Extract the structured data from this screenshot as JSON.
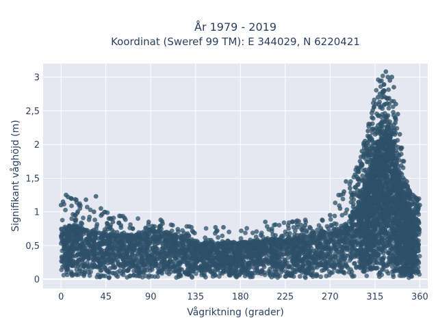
{
  "chart_data": {
    "type": "scatter",
    "title": "År 1979 - 2019",
    "subtitle": "Koordinat (Sweref 99 TM): E 344029, N 6220421",
    "xlabel": "Vågriktning (grader)",
    "ylabel": "Signifikant våghöjd (m)",
    "xlim": [
      -18,
      368
    ],
    "ylim": [
      -0.14,
      3.2
    ],
    "x_ticks": [
      0,
      45,
      90,
      135,
      180,
      225,
      270,
      315,
      360
    ],
    "x_tick_labels": [
      "0",
      "45",
      "90",
      "135",
      "180",
      "225",
      "270",
      "315",
      "360"
    ],
    "y_ticks": [
      0,
      0.5,
      1,
      1.5,
      2,
      2.5,
      3
    ],
    "y_tick_labels": [
      "0",
      "0,5",
      "1",
      "1,5",
      "2",
      "2,5",
      "3"
    ],
    "grid": true,
    "legend": false,
    "marker_color": "#2e5169",
    "background_color": "#e5e8f0",
    "envelope": {
      "direction": [
        0,
        15,
        30,
        45,
        60,
        75,
        90,
        105,
        120,
        135,
        150,
        165,
        180,
        195,
        210,
        225,
        240,
        255,
        270,
        280,
        290,
        300,
        305,
        310,
        315,
        320,
        325,
        330,
        335,
        340,
        345,
        350,
        355,
        360
      ],
      "dense_max": [
        0.75,
        0.8,
        0.72,
        0.68,
        0.65,
        0.65,
        0.72,
        0.7,
        0.62,
        0.55,
        0.55,
        0.55,
        0.55,
        0.56,
        0.6,
        0.62,
        0.65,
        0.68,
        0.72,
        0.78,
        0.85,
        1.05,
        1.3,
        1.55,
        1.85,
        2.05,
        2.15,
        2.1,
        1.85,
        1.45,
        1.15,
        1.0,
        0.85,
        0.7
      ],
      "outlier_max": [
        1.25,
        1.2,
        1.05,
        1.0,
        0.95,
        0.9,
        0.9,
        0.85,
        0.8,
        0.8,
        0.78,
        0.78,
        0.75,
        0.8,
        0.82,
        0.85,
        0.9,
        0.95,
        1.1,
        1.3,
        1.5,
        1.8,
        2.1,
        2.4,
        2.8,
        3.08,
        3.0,
        2.9,
        2.6,
        2.1,
        1.5,
        1.3,
        1.25,
        1.2
      ]
    },
    "scatter_points": [
      {
        "x": 0,
        "y": 1.1
      },
      {
        "x": 2,
        "y": 1.15
      },
      {
        "x": 5,
        "y": 1.25
      },
      {
        "x": 7,
        "y": 1.22
      },
      {
        "x": 10,
        "y": 1.2
      },
      {
        "x": 18,
        "y": 1.1
      },
      {
        "x": 25,
        "y": 1.18
      },
      {
        "x": 33,
        "y": 1.0
      },
      {
        "x": 35,
        "y": 1.23
      },
      {
        "x": 40,
        "y": 1.05
      },
      {
        "x": 48,
        "y": 0.9
      },
      {
        "x": 52,
        "y": 0.85
      },
      {
        "x": 60,
        "y": 0.8
      },
      {
        "x": 72,
        "y": 0.75
      },
      {
        "x": 88,
        "y": 0.85
      },
      {
        "x": 100,
        "y": 0.88
      },
      {
        "x": 112,
        "y": 0.8
      },
      {
        "x": 155,
        "y": 0.77
      },
      {
        "x": 163,
        "y": 0.77
      },
      {
        "x": 205,
        "y": 0.85
      },
      {
        "x": 232,
        "y": 0.85
      },
      {
        "x": 245,
        "y": 0.8
      },
      {
        "x": 262,
        "y": 0.88
      },
      {
        "x": 270,
        "y": 0.95
      },
      {
        "x": 280,
        "y": 1.05
      },
      {
        "x": 284,
        "y": 1.3
      },
      {
        "x": 286,
        "y": 1.45
      },
      {
        "x": 290,
        "y": 1.35
      },
      {
        "x": 295,
        "y": 1.55
      },
      {
        "x": 298,
        "y": 1.6
      },
      {
        "x": 300,
        "y": 1.75
      },
      {
        "x": 302,
        "y": 1.9
      },
      {
        "x": 305,
        "y": 2.05
      },
      {
        "x": 308,
        "y": 2.2
      },
      {
        "x": 310,
        "y": 2.3
      },
      {
        "x": 312,
        "y": 2.4
      },
      {
        "x": 314,
        "y": 2.55
      },
      {
        "x": 316,
        "y": 2.6
      },
      {
        "x": 318,
        "y": 2.7
      },
      {
        "x": 320,
        "y": 2.75
      },
      {
        "x": 322,
        "y": 2.7
      },
      {
        "x": 324,
        "y": 2.8
      },
      {
        "x": 326,
        "y": 3.08
      },
      {
        "x": 328,
        "y": 3.0
      },
      {
        "x": 330,
        "y": 2.95
      },
      {
        "x": 332,
        "y": 3.0
      },
      {
        "x": 334,
        "y": 2.85
      },
      {
        "x": 336,
        "y": 2.6
      },
      {
        "x": 338,
        "y": 2.45
      },
      {
        "x": 340,
        "y": 2.15
      },
      {
        "x": 342,
        "y": 1.95
      },
      {
        "x": 344,
        "y": 1.75
      },
      {
        "x": 347,
        "y": 1.45
      },
      {
        "x": 350,
        "y": 1.3
      },
      {
        "x": 353,
        "y": 1.25
      },
      {
        "x": 356,
        "y": 1.2
      },
      {
        "x": 358,
        "y": 1.18
      },
      {
        "x": 360,
        "y": 1.1
      }
    ]
  }
}
